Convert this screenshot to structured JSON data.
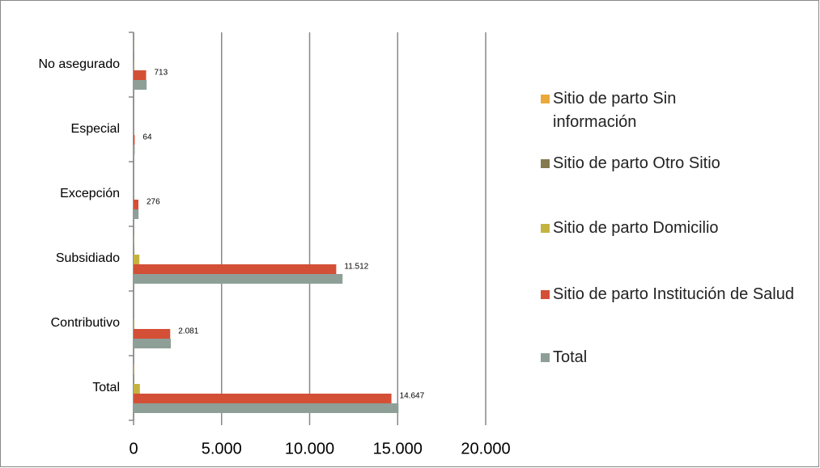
{
  "chart_data": {
    "type": "bar",
    "orientation": "horizontal",
    "categories": [
      "Total",
      "Contributivo",
      "Subsidiado",
      "Excepción",
      "Especial",
      "No asegurado"
    ],
    "series": [
      {
        "name": "Sitio de parto Sin información",
        "color": "#e9a93b",
        "values": [
          25,
          5,
          10,
          2,
          1,
          8
        ]
      },
      {
        "name": "Sitio de parto Otro Sitio",
        "color": "#847a4f",
        "values": [
          20,
          5,
          15,
          1,
          0,
          5
        ]
      },
      {
        "name": "Sitio de parto Domicilio",
        "color": "#c4b43f",
        "values": [
          360,
          25,
          330,
          3,
          1,
          15
        ]
      },
      {
        "name": "Sitio de parto Institución de Salud",
        "color": "#d35037",
        "values": [
          14647,
          2081,
          11512,
          276,
          64,
          713
        ],
        "value_labels": [
          "14.647",
          "2.081",
          "11.512",
          "276",
          "64",
          "713"
        ]
      },
      {
        "name": "Total",
        "color": "#8e9f97",
        "values": [
          15050,
          2115,
          11870,
          282,
          66,
          741
        ]
      }
    ],
    "xlim": [
      0,
      20000
    ],
    "xticks": [
      0,
      {
        "value": 5000,
        "label": "5.000"
      },
      {
        "value": 10000,
        "label": "10.000"
      },
      {
        "value": 15000,
        "label": "15.000"
      },
      {
        "value": 20000,
        "label": "20.000"
      }
    ],
    "grid": true,
    "legend": "right"
  }
}
